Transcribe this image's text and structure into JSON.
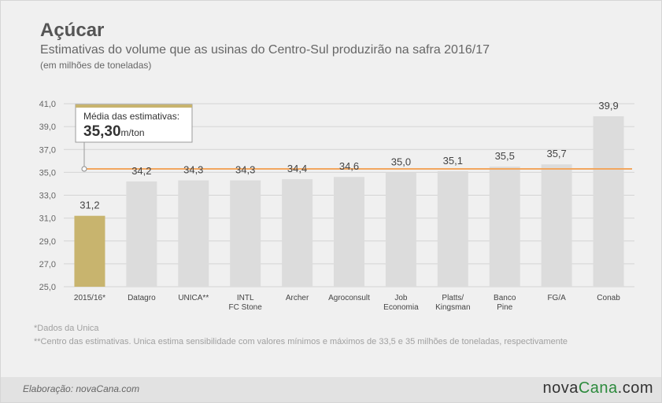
{
  "header": {
    "title": "Açúcar",
    "subtitle": "Estimativas do volume que as usinas do Centro-Sul produzirão na safra 2016/17",
    "unit": "(em milhões de toneladas)"
  },
  "callout": {
    "label": "Média das estimativas:",
    "value": "35,30",
    "unit": "m/ton"
  },
  "chart_data": {
    "type": "bar",
    "categories": [
      "2015/16*",
      "Datagro",
      "UNICA**",
      "INTL FC Stone",
      "Archer",
      "Agroconsult",
      "Job Economia",
      "Platts/ Kingsman",
      "Banco Pine",
      "FG/A",
      "Conab"
    ],
    "category_lines": [
      [
        "2015/16*"
      ],
      [
        "Datagro"
      ],
      [
        "UNICA**"
      ],
      [
        "INTL",
        "FC Stone"
      ],
      [
        "Archer"
      ],
      [
        "Agroconsult"
      ],
      [
        "Job",
        "Economia"
      ],
      [
        "Platts/",
        "Kingsman"
      ],
      [
        "Banco",
        "Pine"
      ],
      [
        "FG/A"
      ],
      [
        "Conab"
      ]
    ],
    "values": [
      31.2,
      34.2,
      34.3,
      34.3,
      34.4,
      34.6,
      35.0,
      35.1,
      35.5,
      35.7,
      39.9
    ],
    "value_labels": [
      "31,2",
      "34,2",
      "34,3",
      "34,3",
      "34,4",
      "34,6",
      "35,0",
      "35,1",
      "35,5",
      "35,7",
      "39,9"
    ],
    "ylim": [
      25,
      41
    ],
    "yticks": [
      25,
      27,
      29,
      31,
      33,
      35,
      37,
      39,
      41
    ],
    "ytick_labels": [
      "25,0",
      "27,0",
      "29,0",
      "31,0",
      "33,0",
      "35,0",
      "37,0",
      "39,0",
      "41,0"
    ],
    "average": 35.3,
    "highlight_index": 0,
    "grid": true,
    "colors": {
      "highlight_bar": "#c8b46e",
      "bar": "#dcdcdc",
      "average_line": "#f2a65e",
      "grid": "#d4d4d4",
      "callout_bar": "#c8b46e"
    }
  },
  "notes": {
    "note1": "*Dados da Unica",
    "note2": "**Centro das estimativas. Unica estima sensibilidade com valores mínimos e máximos de 33,5 e 35 milhões de toneladas, respectivamente"
  },
  "footer": {
    "credit": "Elaboração: novaCana.com",
    "logo_main": "nova",
    "logo_accent": "Cana",
    "logo_suffix": ".com"
  }
}
